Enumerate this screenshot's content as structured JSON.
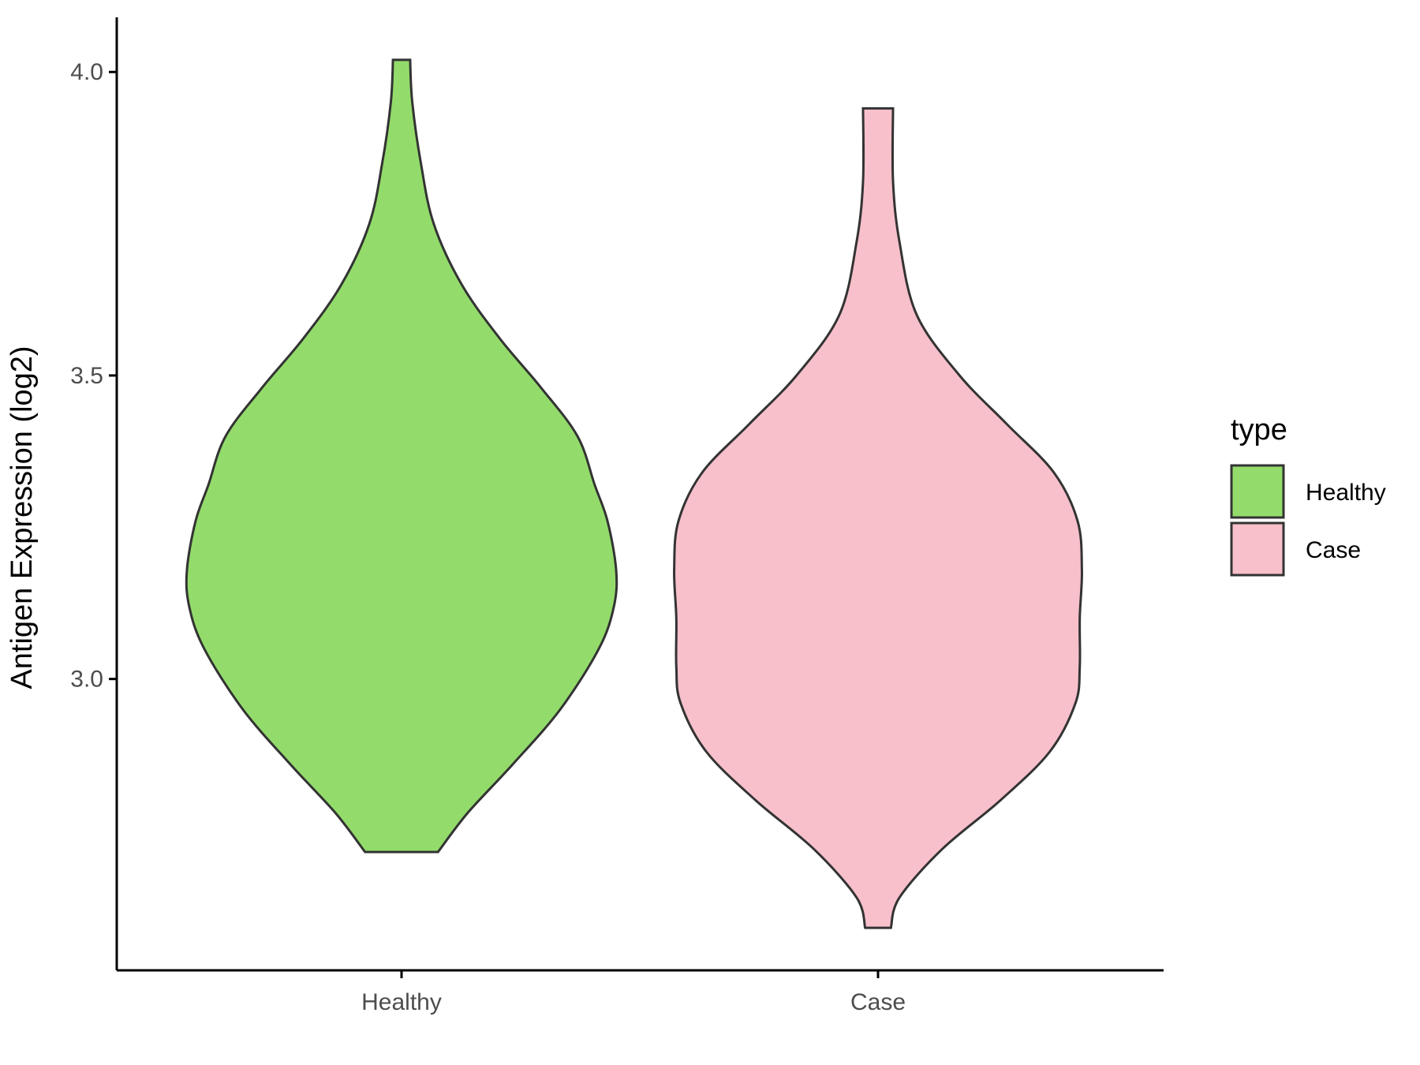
{
  "chart_data": {
    "type": "violin",
    "title": "",
    "xlabel": "",
    "ylabel": "Antigen Expression (log2)",
    "ylim": [
      2.52,
      4.09
    ],
    "yticks": [
      3.0,
      3.5,
      4.0
    ],
    "ytick_labels": [
      "3.0",
      "3.5",
      "4.0"
    ],
    "categories": [
      "Healthy",
      "Case"
    ],
    "grid": false,
    "legend": {
      "title": "type",
      "placement": "right",
      "entries": [
        {
          "label": "Healthy",
          "color": "#93dc6b"
        },
        {
          "label": "Case",
          "color": "#f7c0cb"
        }
      ]
    },
    "series": [
      {
        "name": "Healthy",
        "color": "#93dc6b",
        "min": 2.715,
        "max": 4.02,
        "density_profile": [
          [
            2.715,
            0.17
          ],
          [
            2.78,
            0.31
          ],
          [
            2.86,
            0.52
          ],
          [
            2.95,
            0.74
          ],
          [
            3.05,
            0.92
          ],
          [
            3.12,
            0.99
          ],
          [
            3.18,
            1.0
          ],
          [
            3.26,
            0.96
          ],
          [
            3.32,
            0.9
          ],
          [
            3.4,
            0.82
          ],
          [
            3.48,
            0.65
          ],
          [
            3.56,
            0.46
          ],
          [
            3.65,
            0.28
          ],
          [
            3.75,
            0.15
          ],
          [
            3.85,
            0.09
          ],
          [
            3.95,
            0.05
          ],
          [
            4.02,
            0.04
          ]
        ]
      },
      {
        "name": "Case",
        "color": "#f7c0cb",
        "min": 2.59,
        "max": 3.94,
        "density_profile": [
          [
            2.59,
            0.06
          ],
          [
            2.64,
            0.1
          ],
          [
            2.72,
            0.3
          ],
          [
            2.8,
            0.57
          ],
          [
            2.88,
            0.8
          ],
          [
            2.96,
            0.92
          ],
          [
            3.02,
            0.94
          ],
          [
            3.1,
            0.94
          ],
          [
            3.18,
            0.95
          ],
          [
            3.26,
            0.93
          ],
          [
            3.34,
            0.82
          ],
          [
            3.42,
            0.6
          ],
          [
            3.5,
            0.38
          ],
          [
            3.6,
            0.18
          ],
          [
            3.72,
            0.1
          ],
          [
            3.82,
            0.07
          ],
          [
            3.94,
            0.07
          ]
        ]
      }
    ]
  }
}
